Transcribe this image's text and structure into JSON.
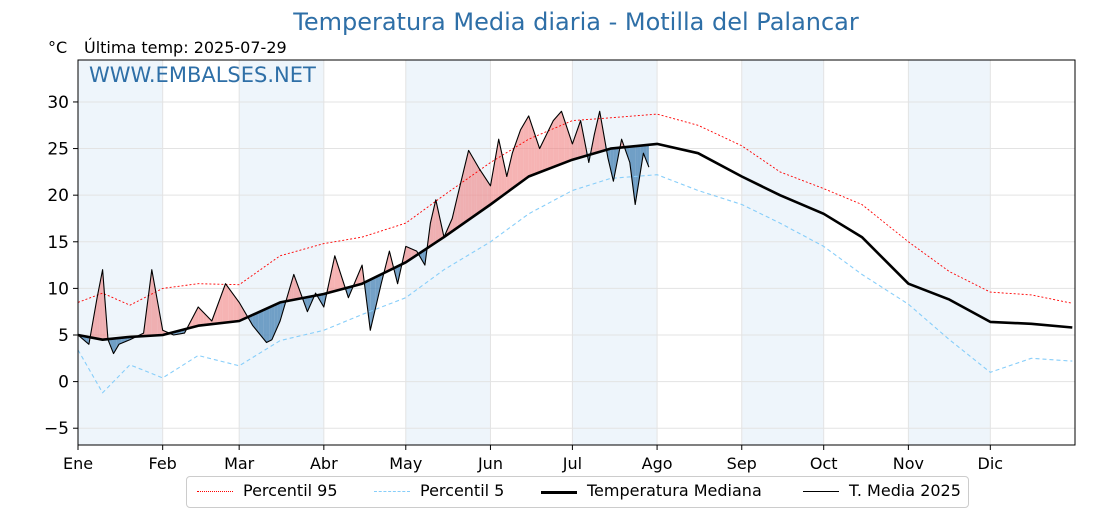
{
  "chart_data": {
    "type": "line",
    "title": "Temperatura Media diaria - Motilla del Palancar",
    "ylabel": "°C",
    "subtitle": "Última temp: 2025-07-29",
    "watermark": "WWW.EMBALSES.NET",
    "ylim": [
      -6.8,
      34.5
    ],
    "yticks": [
      -5,
      0,
      5,
      10,
      15,
      20,
      25,
      30
    ],
    "grid": true,
    "months": [
      "Ene",
      "Feb",
      "Mar",
      "Abr",
      "May",
      "Jun",
      "Jul",
      "Ago",
      "Sep",
      "Oct",
      "Nov",
      "Dic"
    ],
    "month_start_days": [
      1,
      32,
      60,
      91,
      121,
      152,
      182,
      213,
      244,
      274,
      305,
      335
    ],
    "legend_position": "bottom",
    "colors": {
      "p95": "#ff0000",
      "p5": "#87cefa",
      "median": "#000000",
      "year": "#000000",
      "above": "#f08080",
      "below": "#4682b4",
      "band": "#eef5fb",
      "title": "#2e6fa7"
    },
    "series": [
      {
        "name": "Percentil 95",
        "style": "dotted-red",
        "x": [
          1,
          10,
          20,
          32,
          45,
          60,
          75,
          91,
          105,
          121,
          135,
          152,
          166,
          182,
          196,
          213,
          228,
          244,
          258,
          274,
          288,
          305,
          320,
          335,
          350,
          365
        ],
        "y": [
          8.5,
          9.5,
          8.2,
          10.0,
          10.5,
          10.4,
          13.5,
          14.8,
          15.5,
          17.0,
          20.0,
          23.5,
          26.0,
          28.0,
          28.3,
          28.7,
          27.5,
          25.3,
          22.5,
          20.7,
          19.0,
          15.0,
          11.8,
          9.6,
          9.3,
          8.4
        ]
      },
      {
        "name": "Percentil 5",
        "style": "dashed-lightblue",
        "x": [
          1,
          10,
          20,
          32,
          45,
          60,
          75,
          91,
          105,
          121,
          135,
          152,
          166,
          182,
          196,
          213,
          228,
          244,
          258,
          274,
          288,
          305,
          320,
          335,
          350,
          365
        ],
        "y": [
          3.4,
          -1.2,
          1.8,
          0.4,
          2.8,
          1.7,
          4.4,
          5.5,
          7.2,
          9.0,
          12.0,
          15.0,
          18.0,
          20.5,
          21.8,
          22.2,
          20.5,
          19.0,
          17.0,
          14.5,
          11.5,
          8.3,
          4.5,
          1.0,
          2.5,
          2.2
        ]
      },
      {
        "name": "Temperatura Mediana",
        "style": "thick-black",
        "x": [
          1,
          10,
          20,
          32,
          45,
          60,
          75,
          91,
          105,
          121,
          135,
          152,
          166,
          182,
          196,
          213,
          228,
          244,
          258,
          274,
          288,
          305,
          320,
          335,
          350,
          365
        ],
        "y": [
          5.0,
          4.5,
          4.8,
          5.0,
          6.0,
          6.5,
          8.5,
          9.4,
          10.5,
          12.8,
          15.5,
          19.0,
          22.0,
          23.8,
          25.0,
          25.5,
          24.5,
          22.0,
          20.0,
          18.0,
          15.5,
          10.5,
          8.8,
          6.4,
          6.2,
          5.8
        ]
      },
      {
        "name": "T. Media 2025",
        "style": "thin-black",
        "x": [
          1,
          5,
          8,
          10,
          12,
          14,
          16,
          20,
          25,
          28,
          32,
          36,
          40,
          45,
          50,
          55,
          60,
          65,
          70,
          72,
          75,
          80,
          85,
          88,
          91,
          95,
          100,
          105,
          108,
          112,
          115,
          118,
          121,
          125,
          128,
          130,
          132,
          135,
          138,
          140,
          144,
          148,
          152,
          155,
          158,
          160,
          163,
          166,
          170,
          175,
          178,
          182,
          185,
          188,
          190,
          192,
          195,
          197,
          200,
          203,
          205,
          208,
          210
        ],
        "y": [
          5.0,
          4.0,
          9.0,
          12.0,
          4.5,
          3.0,
          4.0,
          4.5,
          5.2,
          12.0,
          5.5,
          5.0,
          5.2,
          8.0,
          6.5,
          10.5,
          8.5,
          6.0,
          4.2,
          4.5,
          6.5,
          11.5,
          7.5,
          9.5,
          8.0,
          13.5,
          9.0,
          12.5,
          5.5,
          10.5,
          14.0,
          10.5,
          14.5,
          14.0,
          12.5,
          17.0,
          19.5,
          15.5,
          17.5,
          20.0,
          24.8,
          22.8,
          21.0,
          26.0,
          22.0,
          24.5,
          27.0,
          28.5,
          25.0,
          28.0,
          29.0,
          25.5,
          28.0,
          23.5,
          26.5,
          29.0,
          24.0,
          21.5,
          26.0,
          23.5,
          19.0,
          24.5,
          23.0
        ]
      }
    ]
  }
}
